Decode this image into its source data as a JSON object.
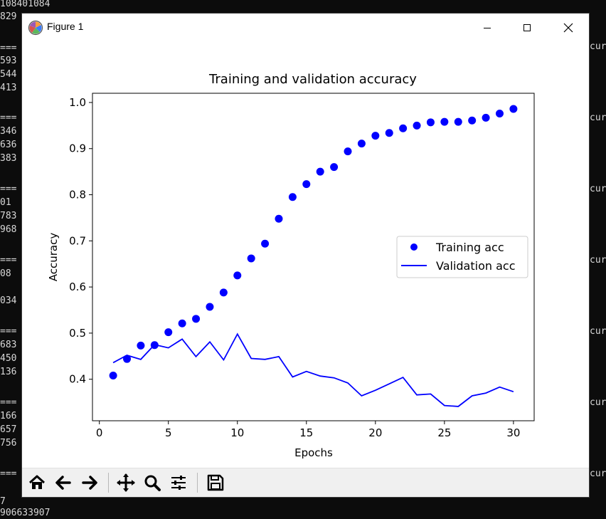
{
  "console": {
    "left_lines": [
      "108401084",
      "829",
      "===",
      "593",
      "544",
      "413",
      "===",
      "346",
      "636",
      "383",
      "===",
      "01",
      "783",
      "968",
      "===",
      "08",
      "",
      "034",
      "===",
      "683",
      "450",
      "136",
      "===",
      "166",
      "657",
      "756",
      "==="
    ],
    "right_lines": [
      "cur",
      "cur",
      "cur",
      "cur",
      "cur",
      "cur",
      "cur"
    ],
    "bottom_lines": [
      "7",
      "906633907"
    ]
  },
  "window": {
    "title": "Figure 1"
  },
  "colors": {
    "training": "#0000ff",
    "validation": "#0000ff",
    "toolbar_bg": "#f0f0f0"
  },
  "toolbar": {
    "icons": [
      "home-icon",
      "back-arrow-icon",
      "forward-arrow-icon",
      "pan-icon",
      "zoom-icon",
      "configure-subplots-icon",
      "save-icon"
    ]
  },
  "chart_data": {
    "type": "line",
    "title": "Training and validation accuracy",
    "xlabel": "Epochs",
    "ylabel": "Accuracy",
    "xlim": [
      -0.5,
      31.5
    ],
    "ylim": [
      0.31,
      1.02
    ],
    "xticks": [
      0,
      5,
      10,
      15,
      20,
      25,
      30
    ],
    "yticks": [
      0.4,
      0.5,
      0.6,
      0.7,
      0.8,
      0.9,
      1.0
    ],
    "xtick_labels": [
      "0",
      "5",
      "10",
      "15",
      "20",
      "25",
      "30"
    ],
    "ytick_labels": [
      "0.4",
      "0.5",
      "0.6",
      "0.7",
      "0.8",
      "0.9",
      "1.0"
    ],
    "grid": false,
    "legend_position": "center-right",
    "x": [
      1,
      2,
      3,
      4,
      5,
      6,
      7,
      8,
      9,
      10,
      11,
      12,
      13,
      14,
      15,
      16,
      17,
      18,
      19,
      20,
      21,
      22,
      23,
      24,
      25,
      26,
      27,
      28,
      29,
      30
    ],
    "series": [
      {
        "name": "Training acc",
        "style": "dots",
        "values": [
          0.408,
          0.444,
          0.473,
          0.474,
          0.502,
          0.521,
          0.531,
          0.557,
          0.588,
          0.625,
          0.662,
          0.694,
          0.748,
          0.795,
          0.823,
          0.85,
          0.86,
          0.894,
          0.911,
          0.928,
          0.934,
          0.944,
          0.95,
          0.957,
          0.958,
          0.958,
          0.961,
          0.967,
          0.976,
          0.986
        ]
      },
      {
        "name": "Validation acc",
        "style": "line",
        "values": [
          0.436,
          0.452,
          0.443,
          0.475,
          0.468,
          0.487,
          0.449,
          0.481,
          0.442,
          0.498,
          0.445,
          0.443,
          0.449,
          0.405,
          0.417,
          0.407,
          0.403,
          0.392,
          0.364,
          0.376,
          0.39,
          0.404,
          0.366,
          0.368,
          0.343,
          0.341,
          0.364,
          0.37,
          0.383,
          0.373
        ]
      }
    ]
  }
}
